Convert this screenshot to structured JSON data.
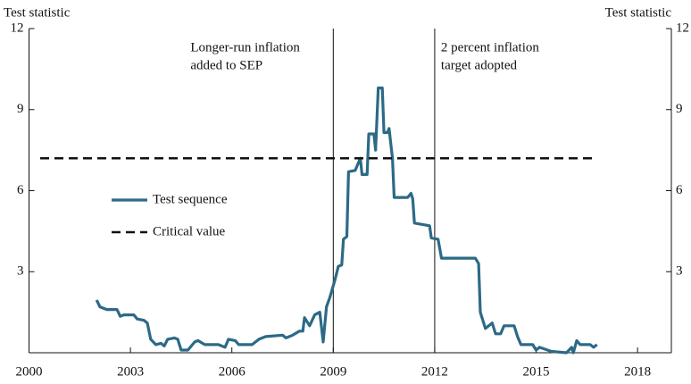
{
  "chart_data": {
    "type": "line",
    "y_label": "Test statistic",
    "y2_label": "Test statistic",
    "xlim": [
      2000,
      2019
    ],
    "xticks": [
      2000,
      2003,
      2006,
      2009,
      2012,
      2015,
      2018
    ],
    "ylim": [
      0,
      12
    ],
    "yticks": [
      3,
      6,
      9,
      12
    ],
    "y2lim": [
      0,
      12
    ],
    "y2ticks": [
      3,
      6,
      9,
      12
    ],
    "annotations": [
      {
        "x": 2009,
        "lines": [
          "Longer-run inflation",
          "added to SEP"
        ]
      },
      {
        "x": 2012,
        "lines": [
          "2 percent inflation",
          "target adopted"
        ]
      }
    ],
    "series": [
      {
        "name": "Test sequence",
        "color": "#2c6a86",
        "dash": false,
        "x": [
          2002.0,
          2002.1,
          2002.3,
          2002.6,
          2002.7,
          2002.8,
          2003.1,
          2003.2,
          2003.4,
          2003.5,
          2003.6,
          2003.75,
          2003.9,
          2004.0,
          2004.1,
          2004.3,
          2004.4,
          2004.5,
          2004.7,
          2004.9,
          2005.0,
          2005.2,
          2005.6,
          2005.8,
          2005.9,
          2006.1,
          2006.2,
          2006.6,
          2006.8,
          2007.0,
          2007.5,
          2007.6,
          2007.8,
          2008.0,
          2008.1,
          2008.15,
          2008.3,
          2008.45,
          2008.6,
          2008.7,
          2008.8,
          2008.9,
          2009.05,
          2009.15,
          2009.25,
          2009.3,
          2009.4,
          2009.45,
          2009.65,
          2009.8,
          2009.85,
          2010.0,
          2010.05,
          2010.2,
          2010.25,
          2010.33,
          2010.45,
          2010.5,
          2010.6,
          2010.65,
          2010.75,
          2010.8,
          2011.2,
          2011.3,
          2011.35,
          2011.4,
          2011.85,
          2011.9,
          2012.1,
          2012.2,
          2013.2,
          2013.3,
          2013.35,
          2013.5,
          2013.7,
          2013.8,
          2013.95,
          2014.05,
          2014.35,
          2014.45,
          2014.55,
          2014.9,
          2015.0,
          2015.1,
          2015.45,
          2015.9,
          2016.05,
          2016.1,
          2016.2,
          2016.3,
          2016.6,
          2016.7,
          2016.8
        ],
        "values": [
          1.95,
          1.7,
          1.6,
          1.6,
          1.35,
          1.4,
          1.4,
          1.25,
          1.2,
          1.1,
          0.5,
          0.3,
          0.35,
          0.25,
          0.5,
          0.55,
          0.5,
          0.1,
          0.1,
          0.4,
          0.45,
          0.3,
          0.3,
          0.2,
          0.5,
          0.45,
          0.3,
          0.3,
          0.5,
          0.6,
          0.65,
          0.55,
          0.65,
          0.8,
          0.8,
          1.3,
          1.0,
          1.4,
          1.5,
          0.4,
          1.7,
          2.05,
          2.7,
          3.2,
          3.25,
          4.2,
          4.3,
          6.7,
          6.75,
          7.2,
          6.6,
          6.6,
          8.1,
          8.1,
          7.5,
          9.8,
          9.8,
          8.15,
          8.15,
          8.3,
          7.2,
          5.75,
          5.75,
          5.9,
          5.7,
          4.8,
          4.7,
          4.25,
          4.2,
          3.5,
          3.5,
          3.3,
          1.5,
          0.9,
          1.1,
          0.7,
          0.7,
          1.0,
          1.0,
          0.6,
          0.3,
          0.3,
          0.1,
          0.2,
          0.05,
          0.0,
          0.2,
          0.0,
          0.45,
          0.3,
          0.3,
          0.2,
          0.3
        ]
      },
      {
        "name": "Critical value",
        "color": "#111111",
        "dash": true,
        "x": [
          2000.33,
          2016.8
        ],
        "values": [
          7.2,
          7.2
        ]
      }
    ]
  }
}
